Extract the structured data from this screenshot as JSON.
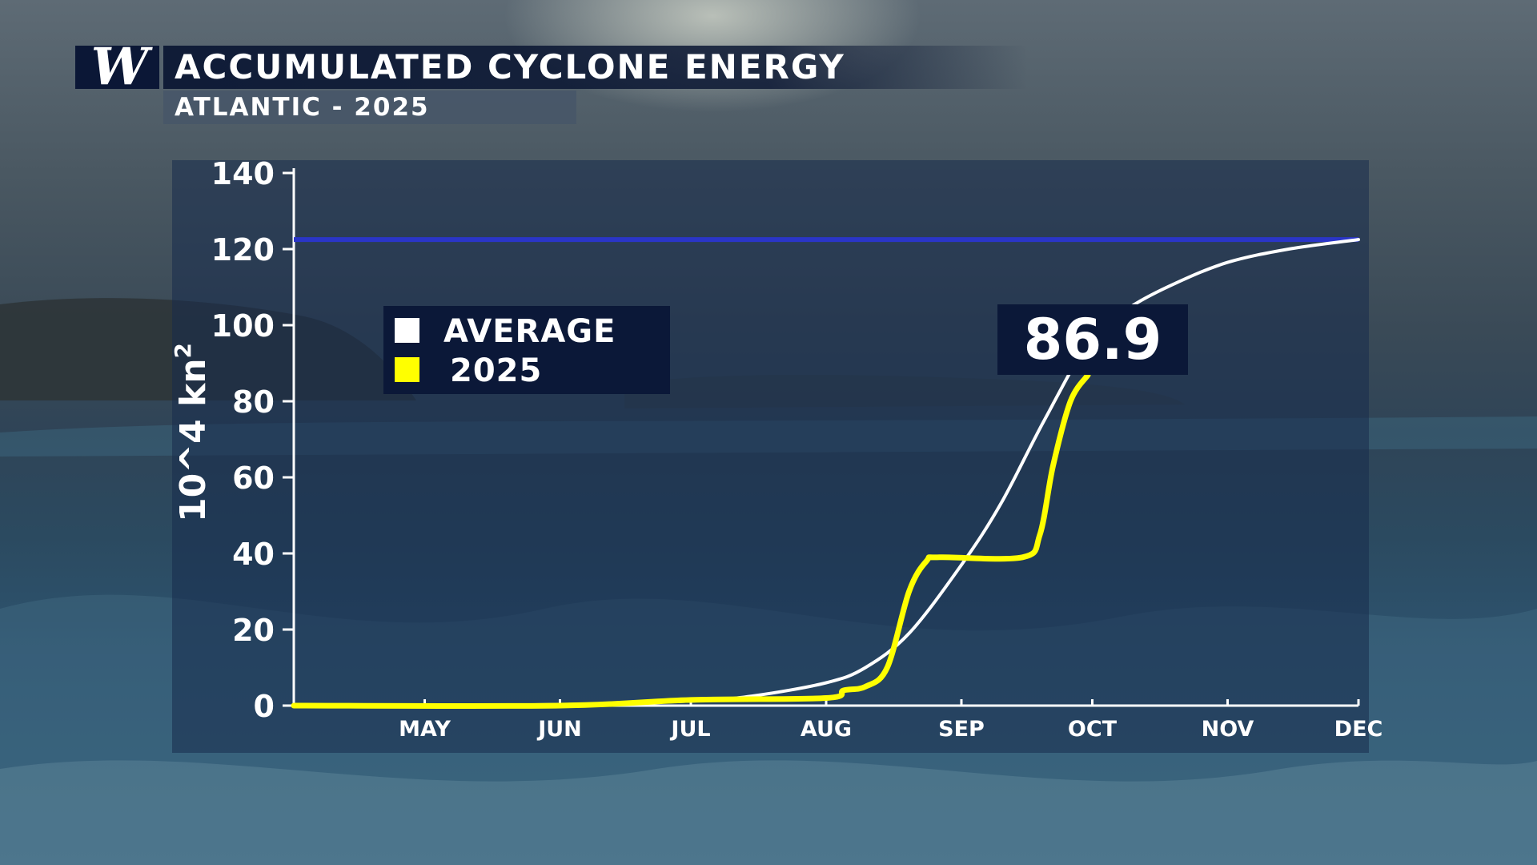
{
  "brand": {
    "logo_text": "W"
  },
  "header": {
    "title": "ACCUMULATED CYCLONE ENERGY",
    "subtitle": "ATLANTIC - 2025"
  },
  "colors": {
    "average_line": "#ffffff",
    "series_2025": "#ffff00",
    "reference_line": "#2a35c8",
    "panel_dark": "#0b1838"
  },
  "legend": {
    "items": [
      {
        "label": "AVERAGE",
        "color": "#ffffff"
      },
      {
        "label": "2025",
        "color": "#ffff00"
      }
    ]
  },
  "callout": {
    "value": "86.9"
  },
  "chart_data": {
    "type": "line",
    "title": "ACCUMULATED CYCLONE ENERGY",
    "subtitle": "ATLANTIC - 2025",
    "ylabel_base": "10^4 kn",
    "ylabel_superscript": "2",
    "xlabel": "",
    "x_ticks": [
      "MAY",
      "JUN",
      "JUL",
      "AUG",
      "SEP",
      "OCT",
      "NOV",
      "DEC"
    ],
    "xlim": [
      "APR 1",
      "DEC 1"
    ],
    "ylim": [
      0,
      140
    ],
    "y_ticks": [
      0,
      20,
      40,
      60,
      80,
      100,
      120,
      140
    ],
    "grid": false,
    "legend_position": "upper-left",
    "reference_line": {
      "y": 122.5
    },
    "series": [
      {
        "name": "AVERAGE",
        "color": "#ffffff",
        "points": [
          [
            "APR 1",
            0
          ],
          [
            "MAY 1",
            0
          ],
          [
            "JUN 1",
            0.3
          ],
          [
            "JUL 1",
            1.2
          ],
          [
            "JUL 15",
            2.5
          ],
          [
            "AUG 1",
            6
          ],
          [
            "AUG 10",
            10
          ],
          [
            "AUG 20",
            19
          ],
          [
            "SEP 1",
            37
          ],
          [
            "SEP 10",
            53
          ],
          [
            "SEP 20",
            75
          ],
          [
            "OCT 1",
            97
          ],
          [
            "OCT 10",
            105
          ],
          [
            "OCT 20",
            111
          ],
          [
            "NOV 1",
            116.5
          ],
          [
            "NOV 15",
            120
          ],
          [
            "DEC 1",
            122.5
          ]
        ]
      },
      {
        "name": "2025",
        "color": "#ffff00",
        "points": [
          [
            "APR 1",
            0
          ],
          [
            "JUN 1",
            0
          ],
          [
            "JUL 1",
            1.5
          ],
          [
            "AUG 1",
            2
          ],
          [
            "AUG 5",
            4
          ],
          [
            "AUG 10",
            5
          ],
          [
            "AUG 15",
            10
          ],
          [
            "AUG 20",
            30
          ],
          [
            "AUG 24",
            38
          ],
          [
            "AUG 27",
            39
          ],
          [
            "SEP 15",
            39
          ],
          [
            "SEP 19",
            45
          ],
          [
            "SEP 22",
            63
          ],
          [
            "SEP 26",
            80
          ],
          [
            "SEP 30",
            86.9
          ]
        ]
      }
    ]
  }
}
